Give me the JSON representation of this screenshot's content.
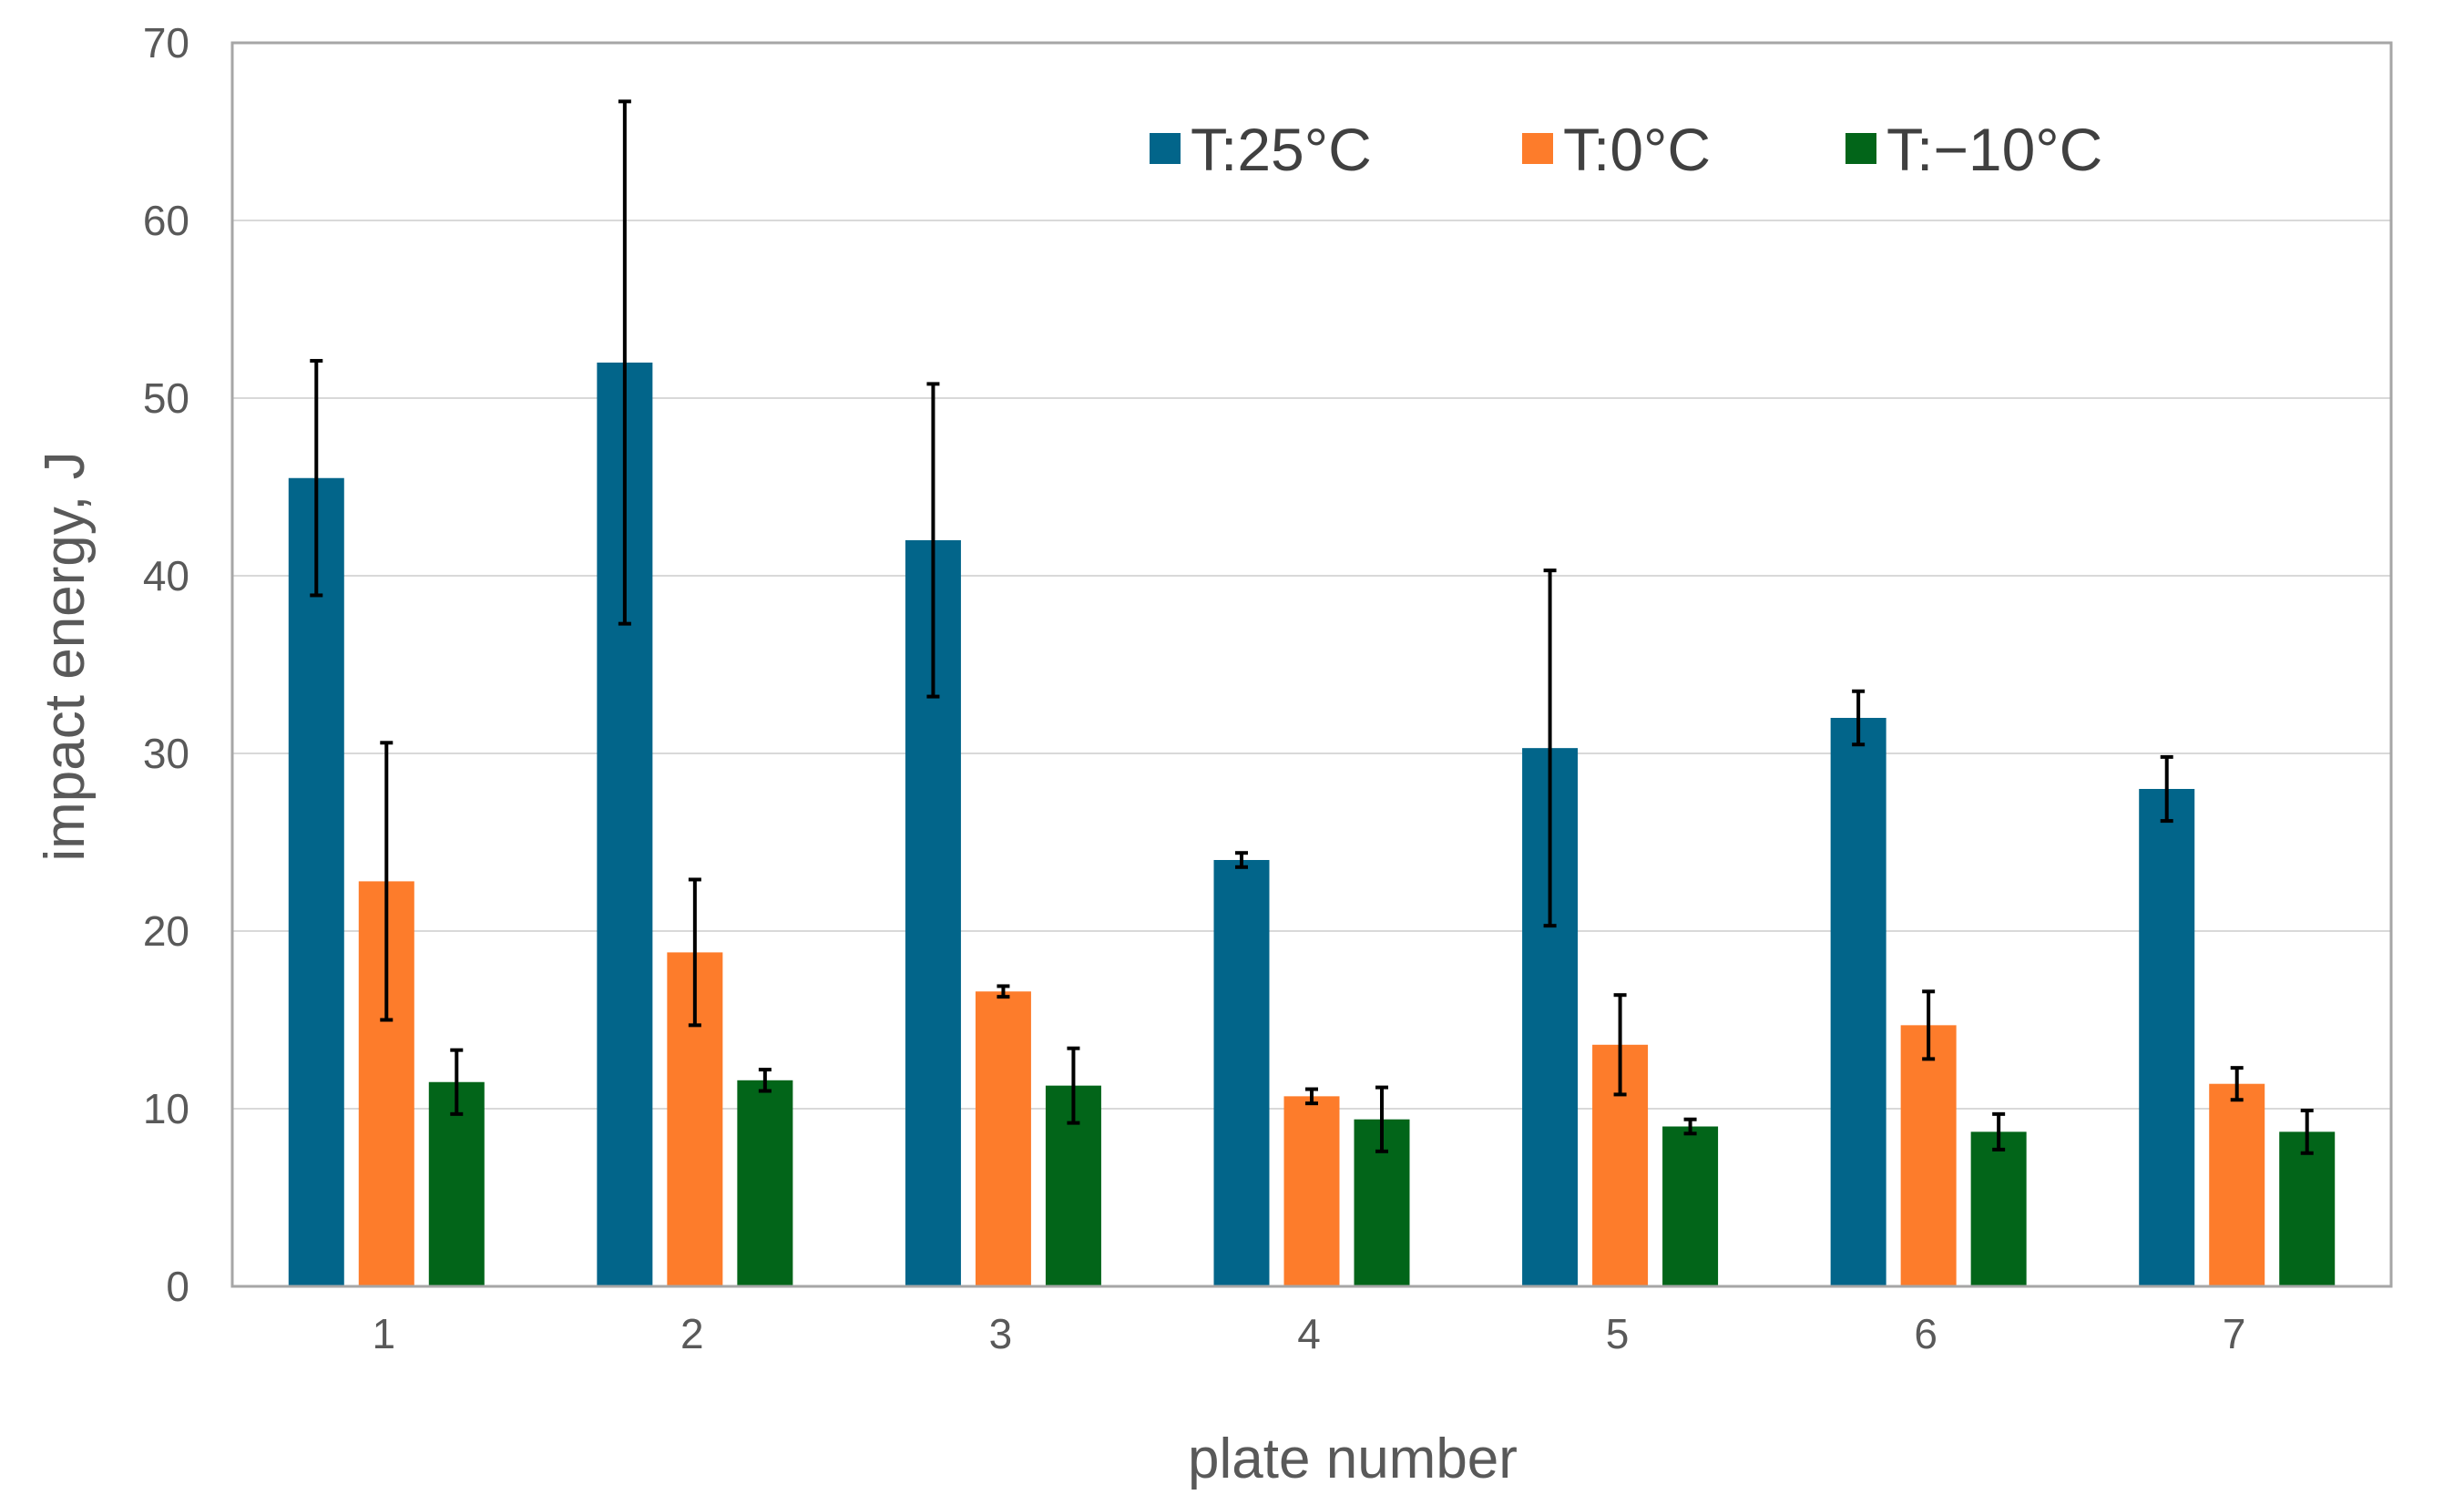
{
  "chart_data": {
    "type": "bar",
    "title": "",
    "xlabel": "plate number",
    "ylabel": "impact energy, J",
    "categories": [
      "1",
      "2",
      "3",
      "4",
      "5",
      "6",
      "7"
    ],
    "ylim": [
      0,
      70
    ],
    "yticks": [
      0,
      10,
      20,
      30,
      40,
      50,
      60,
      70
    ],
    "grid": true,
    "legend_position": "top-right",
    "series": [
      {
        "name": "T:25°C",
        "color": "#02658a",
        "values": [
          45.5,
          52.0,
          42.0,
          24.0,
          30.3,
          32.0,
          28.0
        ],
        "errors": [
          6.6,
          14.7,
          8.8,
          0.4,
          10.0,
          1.5,
          1.8
        ]
      },
      {
        "name": "T:0°C",
        "color": "#fd7c2b",
        "values": [
          22.8,
          18.8,
          16.6,
          10.7,
          13.6,
          14.7,
          11.4
        ],
        "errors": [
          7.8,
          4.1,
          0.3,
          0.4,
          2.8,
          1.9,
          0.9
        ]
      },
      {
        "name": "T:−10°C",
        "color": "#026519",
        "values": [
          11.5,
          11.6,
          11.3,
          9.4,
          9.0,
          8.7,
          8.7
        ],
        "errors": [
          1.8,
          0.6,
          2.1,
          1.8,
          0.4,
          1.0,
          1.2
        ]
      }
    ]
  }
}
